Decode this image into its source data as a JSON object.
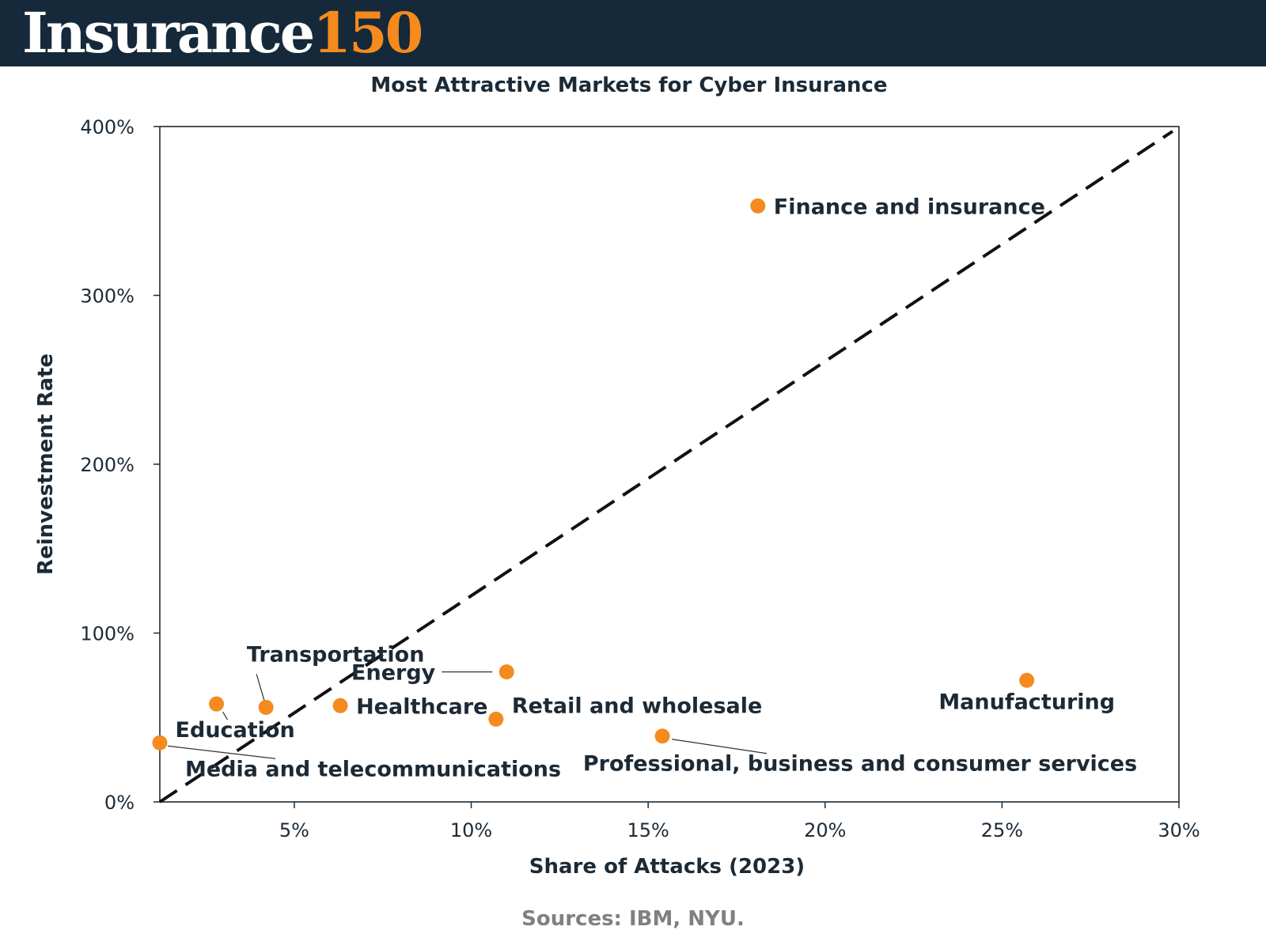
{
  "header": {
    "logo_word": "Insurance",
    "logo_number": "150"
  },
  "colors": {
    "header_bg": "#15293a",
    "accent": "#f58a1f",
    "text": "#1c2a36",
    "source_text": "#808080"
  },
  "chart_data": {
    "type": "scatter",
    "title": "Most Attractive Markets for Cyber Insurance",
    "xlabel": "Share of Attacks (2023)",
    "ylabel": "Reinvestment Rate",
    "xlim": [
      1.2,
      30
    ],
    "ylim": [
      0,
      400
    ],
    "x_ticks": [
      {
        "value": 5,
        "label": "5%"
      },
      {
        "value": 10,
        "label": "10%"
      },
      {
        "value": 15,
        "label": "15%"
      },
      {
        "value": 20,
        "label": "20%"
      },
      {
        "value": 25,
        "label": "25%"
      },
      {
        "value": 30,
        "label": "30%"
      }
    ],
    "y_ticks": [
      {
        "value": 0,
        "label": "0%"
      },
      {
        "value": 100,
        "label": "100%"
      },
      {
        "value": 200,
        "label": "200%"
      },
      {
        "value": 300,
        "label": "300%"
      },
      {
        "value": 400,
        "label": "400%"
      }
    ],
    "grid": false,
    "legend": "none",
    "reference_line": {
      "style": "dashed",
      "from": [
        1.2,
        0
      ],
      "to": [
        30,
        400
      ]
    },
    "points": [
      {
        "name": "Finance and insurance",
        "x": 18.1,
        "y": 353
      },
      {
        "name": "Energy",
        "x": 11.0,
        "y": 77
      },
      {
        "name": "Manufacturing",
        "x": 25.7,
        "y": 72
      },
      {
        "name": "Transportation",
        "x": 4.2,
        "y": 56
      },
      {
        "name": "Education",
        "x": 2.8,
        "y": 58
      },
      {
        "name": "Healthcare",
        "x": 6.3,
        "y": 57
      },
      {
        "name": "Retail and wholesale",
        "x": 10.7,
        "y": 49
      },
      {
        "name": "Professional, business and consumer services",
        "x": 15.4,
        "y": 39
      },
      {
        "name": "Media and telecommunications",
        "x": 1.2,
        "y": 35
      }
    ],
    "point_color": "#f58a1f",
    "source": "Sources: IBM, NYU."
  }
}
